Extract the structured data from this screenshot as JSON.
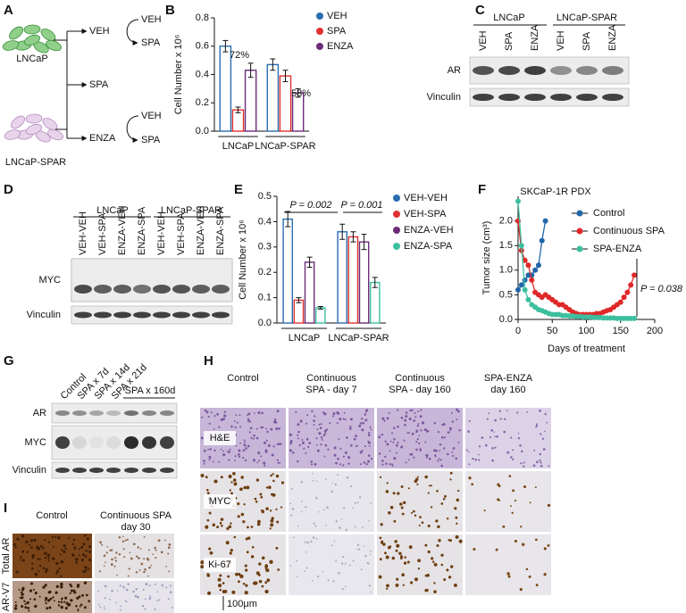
{
  "panel_a": {
    "label": "A",
    "cells": [
      "LNCaP",
      "LNCaP-SPAR"
    ],
    "arms": [
      "VEH",
      "SPA",
      "ENZA"
    ],
    "veh_switch": [
      "VEH",
      "SPA"
    ],
    "enza_switch": [
      "VEH",
      "SPA"
    ]
  },
  "chart_data": [
    {
      "panel_label": "B",
      "type": "bar",
      "ylabel": "Cell Number x 10⁶",
      "categories": [
        "LNCaP",
        "LNCaP-SPAR"
      ],
      "series": [
        {
          "name": "VEH",
          "color": "#2a6db0",
          "values": [
            0.6,
            0.47
          ],
          "errors": [
            0.04,
            0.04
          ]
        },
        {
          "name": "SPA",
          "color": "#e03030",
          "values": [
            0.15,
            0.39
          ],
          "errors": [
            0.02,
            0.04
          ]
        },
        {
          "name": "ENZA",
          "color": "#6b2c78",
          "values": [
            0.43,
            0.27
          ],
          "errors": [
            0.05,
            0.03
          ]
        }
      ],
      "ylim": [
        0,
        0.8
      ],
      "yticks": [
        {
          "value": 0,
          "label": "0.0"
        },
        0.2,
        0.4,
        0.6,
        0.8
      ],
      "annotations": [
        "72%",
        "58%"
      ],
      "legend": "right"
    },
    {
      "panel_label": "E",
      "type": "bar",
      "ylabel": "Cell Number x 10⁶",
      "categories": [
        "LNCaP",
        "LNCaP-SPAR"
      ],
      "series": [
        {
          "name": "VEH-VEH",
          "color": "#2a6db0",
          "values": [
            0.41,
            0.36
          ],
          "errors": [
            0.03,
            0.03
          ]
        },
        {
          "name": "VEH-SPA",
          "color": "#e03030",
          "values": [
            0.09,
            0.34
          ],
          "errors": [
            0.01,
            0.02
          ]
        },
        {
          "name": "ENZA-VEH",
          "color": "#6b2c78",
          "values": [
            0.24,
            0.32
          ],
          "errors": [
            0.02,
            0.03
          ]
        },
        {
          "name": "ENZA-SPA",
          "color": "#3dbf9f",
          "values": [
            0.06,
            0.16
          ],
          "errors": [
            0.005,
            0.02
          ]
        }
      ],
      "ylim": [
        0,
        0.5
      ],
      "yticks": [
        {
          "value": 0,
          "label": "0.0"
        },
        0.1,
        0.2,
        0.3,
        0.4,
        0.5
      ],
      "annotations": [
        "P = 0.002",
        "P = 0.001"
      ],
      "legend": "right"
    },
    {
      "panel_label": "F",
      "type": "line",
      "title": "SKCaP-1R PDX",
      "xlabel": "Days of treatment",
      "ylabel": "Tumor size (cm³)",
      "series": [
        {
          "name": "Control",
          "color": "#2066a8",
          "x": [
            0,
            5,
            10,
            15,
            20,
            25,
            30,
            35,
            40
          ],
          "values": [
            0.6,
            0.7,
            0.8,
            0.9,
            0.9,
            1.0,
            1.1,
            1.6,
            2.0
          ]
        },
        {
          "name": "Continuous SPA",
          "color": "#e02828",
          "x": [
            0,
            5,
            10,
            15,
            20,
            25,
            30,
            35,
            40,
            45,
            50,
            55,
            60,
            65,
            70,
            75,
            80,
            85,
            90,
            95,
            100,
            105,
            110,
            115,
            120,
            125,
            130,
            135,
            140,
            145,
            150,
            155,
            160,
            165,
            170
          ],
          "values": [
            2.0,
            1.4,
            1.2,
            1.1,
            0.8,
            0.55,
            0.5,
            0.45,
            0.5,
            0.45,
            0.4,
            0.35,
            0.3,
            0.3,
            0.25,
            0.2,
            0.15,
            0.12,
            0.1,
            0.1,
            0.1,
            0.1,
            0.1,
            0.12,
            0.12,
            0.15,
            0.18,
            0.2,
            0.25,
            0.3,
            0.35,
            0.45,
            0.55,
            0.7,
            0.9
          ]
        },
        {
          "name": "SPA-ENZA",
          "color": "#3dbf9f",
          "x": [
            0,
            5,
            10,
            15,
            20,
            25,
            30,
            35,
            40,
            45,
            50,
            55,
            60,
            65,
            70,
            75,
            80,
            85,
            90,
            95,
            100,
            105,
            110,
            115,
            120,
            125,
            130,
            135,
            140,
            145,
            150,
            155,
            160,
            165,
            170
          ],
          "values": [
            2.4,
            1.5,
            0.6,
            0.4,
            0.3,
            0.25,
            0.2,
            0.18,
            0.15,
            0.12,
            0.1,
            0.1,
            0.1,
            0.08,
            0.08,
            0.07,
            0.07,
            0.06,
            0.06,
            0.05,
            0.05,
            0.05,
            0.04,
            0.04,
            0.04,
            0.03,
            0.03,
            0.03,
            0.03,
            0.02,
            0.02,
            0.02,
            0.02,
            0.02,
            0.02
          ]
        }
      ],
      "xlim": [
        0,
        200
      ],
      "xticks": [
        0,
        50,
        100,
        150,
        200
      ],
      "ylim": [
        0,
        2.5
      ],
      "yticks": [
        {
          "value": 0,
          "label": "0.0"
        },
        0.5,
        {
          "value": 1,
          "label": "1.0"
        },
        1.5,
        {
          "value": 2,
          "label": "2.0"
        }
      ],
      "annotations": [
        "P = 0.038"
      ],
      "legend": "upper right"
    }
  ],
  "panel_c": {
    "label": "C",
    "groups": [
      "LNCaP",
      "LNCaP-SPAR"
    ],
    "lanes": [
      "VEH",
      "SPA",
      "ENZA",
      "VEH",
      "SPA",
      "ENZA"
    ],
    "rows": [
      "AR",
      "Vinculin"
    ]
  },
  "panel_d": {
    "label": "D",
    "groups": [
      "LNCaP",
      "LNCaP-SPAR"
    ],
    "lanes": [
      "VEH-VEH",
      "VEH-SPA",
      "ENZA-VEH",
      "ENZA-SPA",
      "VEH-VEH",
      "VEH-SPA",
      "ENZA-VEH",
      "ENZA-SPA"
    ],
    "rows": [
      "MYC",
      "Vinculin"
    ]
  },
  "panel_g": {
    "label": "G",
    "lanes": [
      "Control",
      "SPA x 7d",
      "SPA x 14d",
      "SPA x 21d"
    ],
    "bracket": "SPA x 160d",
    "rows": [
      "AR",
      "MYC",
      "Vinculin"
    ]
  },
  "panel_h": {
    "label": "H",
    "columns": [
      "Control",
      [
        "Continuous",
        "SPA - day 7"
      ],
      [
        "Continuous",
        "SPA - day 160"
      ],
      [
        "SPA-ENZA",
        "day 160"
      ]
    ],
    "rows": [
      "H&E",
      "MYC",
      "Ki-67"
    ],
    "scale_bar": "100μm"
  },
  "panel_i": {
    "label": "I",
    "columns": [
      "Control",
      [
        "Continuous SPA",
        "day 30"
      ]
    ],
    "rows": [
      "Total AR",
      "AR-V7"
    ]
  }
}
